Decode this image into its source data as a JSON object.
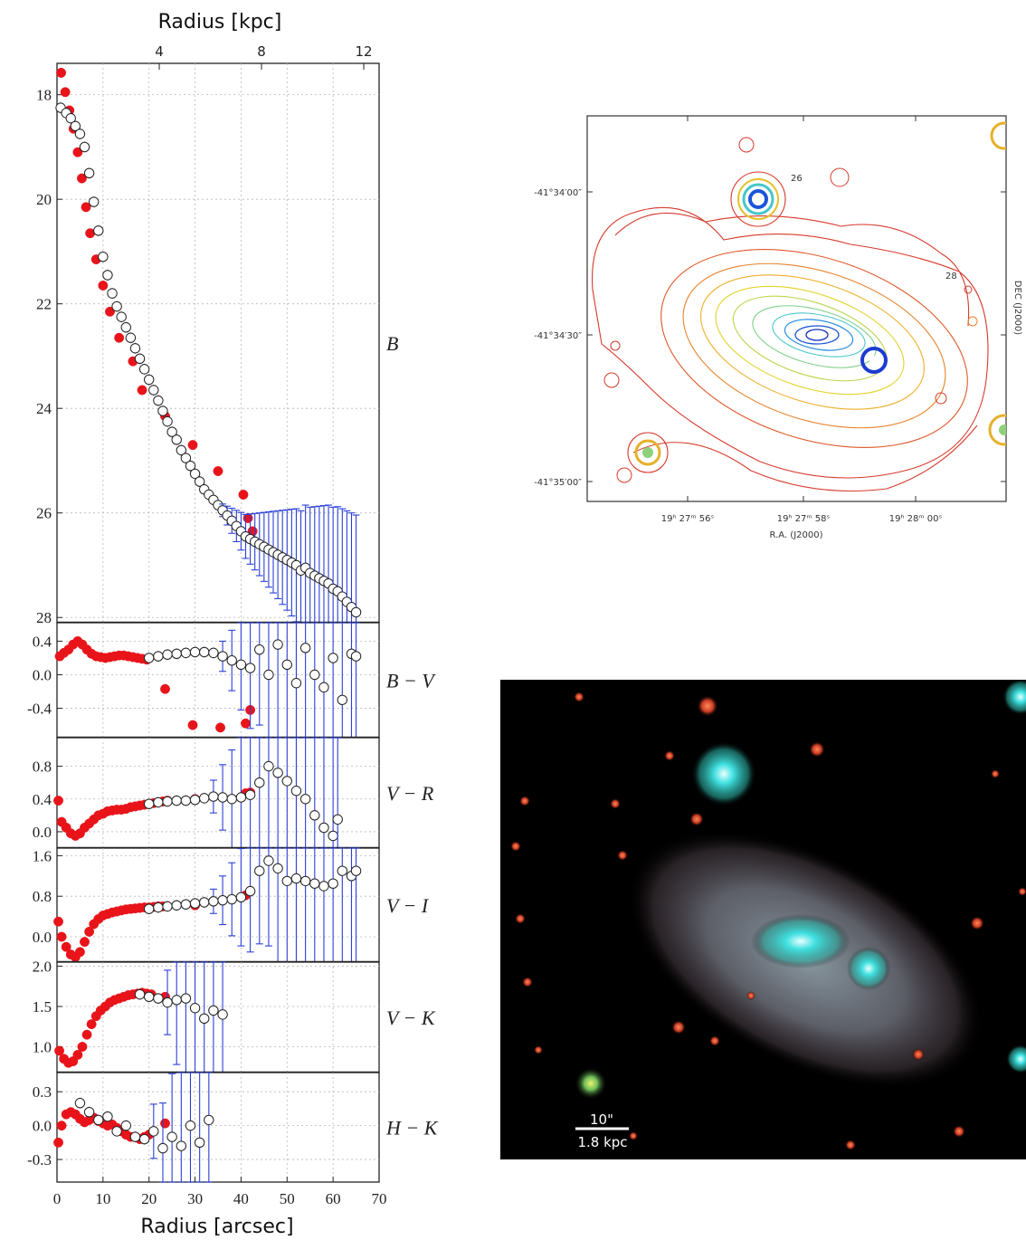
{
  "chart_data": [
    {
      "type": "scatter",
      "title": "",
      "xlabel": "Radius [arcsec]",
      "xlabel_top": "Radius [kpc]",
      "xlim": [
        0,
        70
      ],
      "xticks": [
        "0",
        "10",
        "20",
        "30",
        "40",
        "50",
        "60",
        "70"
      ],
      "top_ticks": [
        {
          "value": 4,
          "label": "4"
        },
        {
          "value": 8,
          "label": "8"
        },
        {
          "value": 12,
          "label": "12"
        }
      ],
      "top_axis_kpc_per_arcsec": 0.18,
      "grid": true,
      "series_colors": {
        "red": "#e8141a",
        "open": "#ffffff",
        "errorbar": "#2a3fd6",
        "errorbar_alt": "#3a9a3a"
      },
      "panels": [
        {
          "label": "B",
          "ylim": [
            28.1,
            17.4
          ],
          "inverted": true,
          "yticks": [
            {
              "v": 18,
              "t": "18"
            },
            {
              "v": 20,
              "t": "20"
            },
            {
              "v": 22,
              "t": "22"
            },
            {
              "v": 24,
              "t": "24"
            },
            {
              "v": 26,
              "t": "26"
            },
            {
              "v": 28,
              "t": "28"
            }
          ],
          "series": [
            {
              "marker": "filled-red",
              "x": [
                0.9,
                1.8,
                2.7,
                3.6,
                4.5,
                5.4,
                6.3,
                7.2,
                8.5,
                10.0,
                11.5,
                13.5,
                16.5,
                18.5,
                23.5,
                29.5,
                35.0,
                40.5,
                41.5,
                42.5
              ],
              "y": [
                17.58,
                17.95,
                18.3,
                18.65,
                19.1,
                19.6,
                20.15,
                20.65,
                21.15,
                21.65,
                22.15,
                22.65,
                23.1,
                23.65,
                24.15,
                24.7,
                25.2,
                25.65,
                26.1,
                26.35
              ]
            },
            {
              "marker": "open",
              "x": [
                0.8,
                2.0,
                3.0,
                4.0,
                5.0,
                6.0,
                7.0,
                8.0,
                9.0,
                10.0,
                11.0,
                12.0,
                13.0,
                14.0,
                15.0,
                16.0,
                17.0,
                18.0,
                19.0,
                20.0,
                21.0,
                22.0,
                23.0,
                24.0,
                25.0,
                26.0,
                27.0,
                28.0,
                29.0,
                30.0,
                31.0,
                32.0,
                33.0,
                34.0,
                35.0,
                36.0,
                37.0,
                38.0,
                39.0,
                40.0,
                41.0,
                42.0,
                43.0,
                44.0,
                45.0,
                46.0,
                47.0,
                48.0,
                49.0,
                50.0,
                51.0,
                52.0,
                53.0,
                54.0,
                55.0,
                56.0,
                57.0,
                58.0,
                59.0,
                60.0,
                61.0,
                62.0,
                63.0,
                64.0,
                65.0
              ],
              "y": [
                18.25,
                18.35,
                18.45,
                18.6,
                18.75,
                19.0,
                19.5,
                20.05,
                20.6,
                21.1,
                21.45,
                21.8,
                22.05,
                22.25,
                22.45,
                22.65,
                22.85,
                23.05,
                23.25,
                23.45,
                23.65,
                23.85,
                24.05,
                24.25,
                24.45,
                24.6,
                24.8,
                24.95,
                25.1,
                25.25,
                25.4,
                25.55,
                25.65,
                25.75,
                25.85,
                25.95,
                26.05,
                26.15,
                26.25,
                26.35,
                26.45,
                26.5,
                26.55,
                26.6,
                26.65,
                26.7,
                26.75,
                26.8,
                26.85,
                26.9,
                26.95,
                27.0,
                27.1,
                27.05,
                27.15,
                27.2,
                27.25,
                27.3,
                27.35,
                27.45,
                27.5,
                27.6,
                27.7,
                27.8,
                27.9
              ],
              "err_from_x": 36,
              "err_grow": 0.06
            }
          ]
        },
        {
          "label": "B − V",
          "ylim": [
            -0.75,
            0.62
          ],
          "yticks": [
            {
              "v": 0.4,
              "t": "0.4"
            },
            {
              "v": 0.0,
              "t": "0.0"
            },
            {
              "v": -0.4,
              "t": "-0.4"
            }
          ],
          "series": [
            {
              "marker": "filled-red",
              "x": [
                0.6,
                1.5,
                2.5,
                3.5,
                4.5,
                5.5,
                6.5,
                7.5,
                8.5,
                9.5,
                10.5,
                11.5,
                12.5,
                13.5,
                14.5,
                15.5,
                16.5,
                17.5,
                18.5,
                19.5,
                23.5,
                29.5,
                35.5,
                41.0,
                42.0
              ],
              "y": [
                0.22,
                0.26,
                0.3,
                0.36,
                0.4,
                0.36,
                0.3,
                0.25,
                0.22,
                0.21,
                0.2,
                0.21,
                0.22,
                0.23,
                0.23,
                0.22,
                0.21,
                0.2,
                0.19,
                0.18,
                -0.17,
                -0.6,
                -0.63,
                -0.58,
                -0.42
              ]
            },
            {
              "marker": "open",
              "x": [
                20,
                22,
                24,
                26,
                28,
                30,
                32,
                34,
                36,
                38,
                40,
                42,
                44,
                46,
                48,
                50,
                52,
                54,
                56,
                58,
                60,
                62,
                64,
                65
              ],
              "y": [
                0.2,
                0.22,
                0.24,
                0.25,
                0.26,
                0.27,
                0.27,
                0.26,
                0.22,
                0.17,
                0.12,
                0.08,
                0.3,
                0.0,
                0.36,
                0.12,
                -0.1,
                0.32,
                0.0,
                -0.15,
                0.2,
                -0.3,
                0.25,
                0.22
              ],
              "err_from_x": 36,
              "err_grow": 0.09
            }
          ]
        },
        {
          "label": "V − R",
          "ylim": [
            -0.2,
            1.15
          ],
          "yticks": [
            {
              "v": 0.8,
              "t": "0.8"
            },
            {
              "v": 0.4,
              "t": "0.4"
            },
            {
              "v": 0.0,
              "t": "0.0"
            }
          ],
          "series": [
            {
              "marker": "filled-red",
              "x": [
                0.3,
                1.0,
                2.0,
                3.0,
                4.0,
                5.0,
                6.0,
                7.0,
                8.0,
                9.0,
                10.0,
                11.0,
                12.0,
                13.0,
                14.0,
                15.0,
                16.0,
                17.0,
                18.0,
                19.0,
                20.0,
                21.0,
                22.0,
                23.0,
                24.0,
                30.0,
                41.0,
                42.0
              ],
              "y": [
                0.38,
                0.12,
                0.05,
                -0.02,
                -0.05,
                -0.02,
                0.05,
                0.1,
                0.15,
                0.2,
                0.22,
                0.25,
                0.26,
                0.27,
                0.27,
                0.28,
                0.3,
                0.31,
                0.32,
                0.33,
                0.34,
                0.35,
                0.36,
                0.37,
                0.38,
                0.4,
                0.47,
                0.48
              ]
            },
            {
              "marker": "open",
              "x": [
                20,
                22,
                24,
                26,
                28,
                30,
                32,
                34,
                36,
                38,
                40,
                42,
                44,
                46,
                48,
                50,
                52,
                54,
                56,
                58,
                60,
                61
              ],
              "y": [
                0.34,
                0.36,
                0.37,
                0.38,
                0.38,
                0.39,
                0.41,
                0.43,
                0.42,
                0.4,
                0.42,
                0.45,
                0.6,
                0.8,
                0.72,
                0.62,
                0.5,
                0.4,
                0.2,
                0.05,
                -0.05,
                0.15
              ],
              "err_from_x": 34,
              "err_grow": 0.1
            }
          ]
        },
        {
          "label": "V − I",
          "ylim": [
            -0.5,
            1.75
          ],
          "yticks": [
            {
              "v": 1.6,
              "t": "1.6"
            },
            {
              "v": 0.8,
              "t": "0.8"
            },
            {
              "v": 0.0,
              "t": "0.0"
            }
          ],
          "series": [
            {
              "marker": "filled-red",
              "x": [
                0.3,
                1.0,
                2.0,
                3.0,
                4.0,
                5.0,
                6.0,
                7.0,
                8.0,
                9.0,
                10.0,
                11.0,
                12.0,
                13.0,
                14.0,
                15.0,
                16.0,
                17.0,
                18.0,
                19.0,
                20.0,
                21.0,
                22.0,
                23.0,
                24.0,
                30.0,
                41.0
              ],
              "y": [
                0.3,
                0.0,
                -0.2,
                -0.35,
                -0.4,
                -0.3,
                -0.1,
                0.1,
                0.25,
                0.35,
                0.42,
                0.45,
                0.48,
                0.5,
                0.52,
                0.54,
                0.55,
                0.56,
                0.57,
                0.58,
                0.58,
                0.59,
                0.6,
                0.6,
                0.6,
                0.62,
                0.82
              ]
            },
            {
              "marker": "open",
              "x": [
                20,
                22,
                24,
                26,
                28,
                30,
                32,
                34,
                36,
                38,
                40,
                42,
                44,
                46,
                48,
                50,
                52,
                54,
                56,
                58,
                60,
                62,
                64,
                65
              ],
              "y": [
                0.55,
                0.58,
                0.6,
                0.62,
                0.64,
                0.66,
                0.68,
                0.7,
                0.72,
                0.74,
                0.78,
                0.9,
                1.3,
                1.5,
                1.35,
                1.1,
                1.15,
                1.1,
                1.05,
                1.0,
                1.05,
                1.3,
                1.2,
                1.3
              ],
              "err_from_x": 34,
              "err_grow": 0.12
            }
          ]
        },
        {
          "label": "V − K",
          "ylim": [
            0.68,
            2.05
          ],
          "yticks": [
            {
              "v": 2.0,
              "t": "2.0"
            },
            {
              "v": 1.5,
              "t": "1.5"
            },
            {
              "v": 1.0,
              "t": "1.0"
            }
          ],
          "series": [
            {
              "marker": "filled-red",
              "x": [
                0.5,
                1.5,
                2.5,
                3.5,
                4.5,
                5.5,
                6.5,
                7.5,
                8.5,
                9.5,
                10.5,
                11.5,
                12.5,
                13.5,
                14.5,
                15.5,
                16.5,
                17.5,
                18.5,
                19.5,
                20.5,
                23.5
              ],
              "y": [
                0.95,
                0.85,
                0.8,
                0.82,
                0.9,
                1.0,
                1.15,
                1.28,
                1.38,
                1.45,
                1.5,
                1.55,
                1.58,
                1.6,
                1.62,
                1.64,
                1.65,
                1.66,
                1.67,
                1.66,
                1.65,
                1.62
              ]
            },
            {
              "marker": "open",
              "x": [
                18,
                20,
                22,
                24,
                26,
                28,
                30,
                32,
                34,
                36
              ],
              "y": [
                1.65,
                1.62,
                1.6,
                1.55,
                1.58,
                1.6,
                1.48,
                1.35,
                1.45,
                1.4
              ],
              "err_from_x": 24,
              "err_grow": 0.2
            }
          ]
        },
        {
          "label": "H − K",
          "ylim": [
            -0.5,
            0.47
          ],
          "yticks": [
            {
              "v": 0.3,
              "t": "0.3"
            },
            {
              "v": 0.0,
              "t": "0.0"
            },
            {
              "v": -0.3,
              "t": "-0.3"
            }
          ],
          "series": [
            {
              "marker": "filled-red",
              "x": [
                0.3,
                1.0,
                2.0,
                3.0,
                4.0,
                5.0,
                6.0,
                7.0,
                8.0,
                9.0,
                10.0,
                11.0,
                12.0,
                13.0,
                14.0,
                15.0,
                16.0,
                17.0,
                18.0,
                19.0,
                20.0,
                23.5
              ],
              "y": [
                -0.15,
                0.0,
                0.1,
                0.12,
                0.1,
                0.06,
                0.03,
                0.05,
                0.07,
                0.04,
                0.02,
                0.0,
                0.01,
                -0.02,
                -0.05,
                -0.08,
                -0.1,
                -0.1,
                -0.12,
                -0.1,
                -0.08,
                0.02
              ]
            },
            {
              "marker": "open",
              "x": [
                5,
                7,
                9,
                11,
                13,
                15,
                17,
                19,
                21,
                23,
                25,
                27,
                29,
                31,
                33
              ],
              "y": [
                0.2,
                0.12,
                0.05,
                0.08,
                -0.05,
                0.0,
                -0.1,
                -0.12,
                -0.05,
                -0.2,
                -0.1,
                -0.18,
                0.0,
                -0.15,
                0.05
              ],
              "err_from_x": 20,
              "err_grow": 0.08
            }
          ]
        }
      ]
    },
    {
      "type": "contour",
      "title": "",
      "xlabel": "R.A. (J2000)",
      "ylabel": "DEC (J2000)",
      "xticks": [
        "19ʰ 27ᵐ 56ˢ",
        "19ʰ 27ᵐ 58ˢ",
        "19ʰ 28ᵐ 00ˢ"
      ],
      "yticks": [
        "-41°34′00″",
        "-41°34′30″",
        "-41°35′00″"
      ],
      "contour_labels": [
        "26",
        "28"
      ]
    },
    {
      "type": "image",
      "title": "",
      "scalebar": {
        "arcsec_label": "10\"",
        "kpc_label": "1.8 kpc"
      }
    }
  ]
}
